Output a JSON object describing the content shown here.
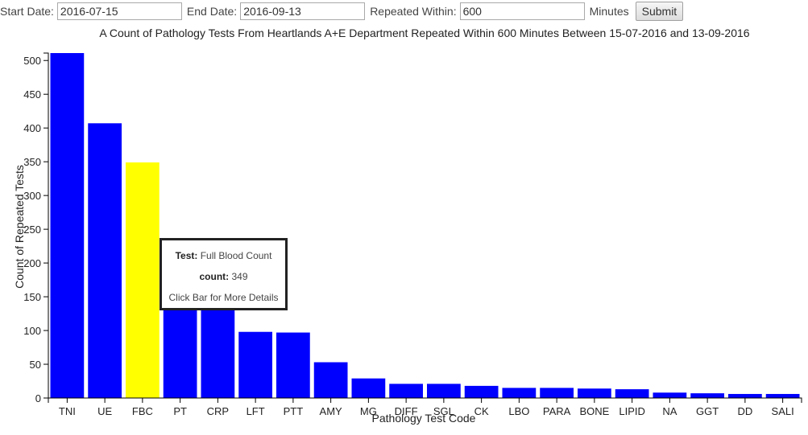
{
  "controls": {
    "start_label": "Start Date:",
    "start_value": "2016-07-15",
    "end_label": "End Date:",
    "end_value": "2016-09-13",
    "repeat_label": "Repeated Within:",
    "repeat_value": "600",
    "minutes_label": "Minutes",
    "submit_label": "Submit"
  },
  "tooltip": {
    "test_label": "Test:",
    "test_value": "Full Blood Count",
    "count_label": "count:",
    "count_value": "349",
    "hint": "Click Bar for More Details"
  },
  "colors": {
    "bar": "#0000ff",
    "highlight": "#ffff00"
  },
  "chart_data": {
    "type": "bar",
    "title": "A Count of Pathology Tests From Heartlands A+E Department Repeated Within 600 Minutes Between 15-07-2016 and 13-09-2016",
    "xlabel": "Pathology Test Code",
    "ylabel": "Count of Repeated Tests",
    "categories": [
      "TNI",
      "UE",
      "FBC",
      "PT",
      "CRP",
      "LFT",
      "PTT",
      "AMY",
      "MG",
      "DIFF",
      "SGL",
      "CK",
      "LBO",
      "PARA",
      "BONE",
      "LIPID",
      "NA",
      "GGT",
      "DD",
      "SALI"
    ],
    "values": [
      511,
      407,
      349,
      150,
      150,
      98,
      97,
      53,
      29,
      21,
      21,
      18,
      15,
      15,
      14,
      13,
      8,
      7,
      6,
      6
    ],
    "highlighted": "FBC",
    "yticks": [
      0,
      50,
      100,
      150,
      200,
      250,
      300,
      350,
      400,
      450,
      500
    ],
    "ylim": [
      0,
      511
    ],
    "grid": false,
    "legend": "none"
  }
}
